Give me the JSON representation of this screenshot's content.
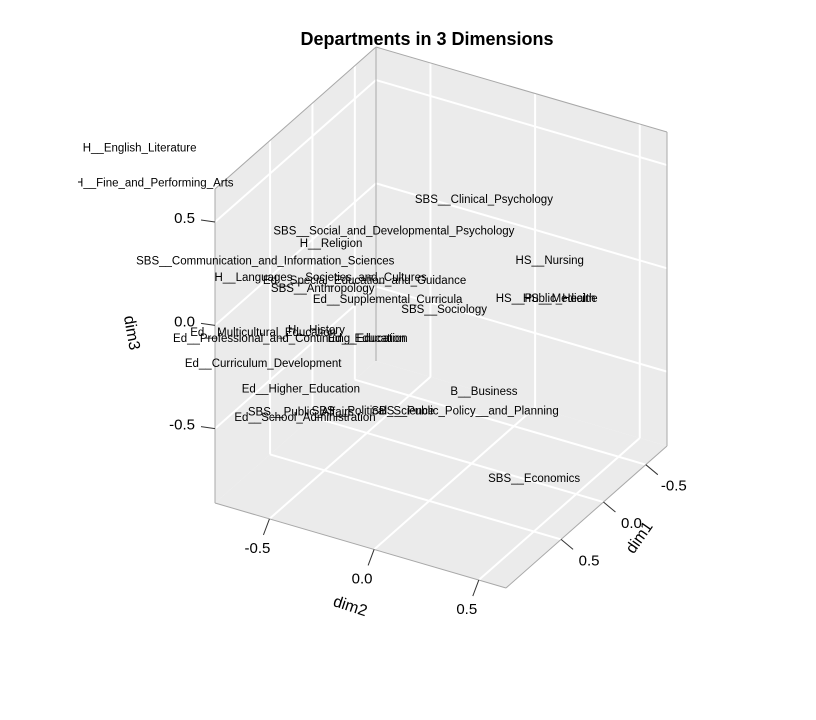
{
  "chart_data": {
    "type": "scatter3d",
    "title": "Departments in 3 Dimensions",
    "xlabel": "dim1",
    "ylabel": "dim2",
    "zlabel": "dim3",
    "xlim": [
      -0.75,
      1.15
    ],
    "ylim": [
      -0.76,
      0.63
    ],
    "zlim": [
      -0.86,
      0.66
    ],
    "xticks": [
      -0.5,
      {
        "value": 0,
        "label": "0.0"
      },
      0.5
    ],
    "yticks": [
      -0.5,
      {
        "value": 0,
        "label": "0.0"
      },
      0.5
    ],
    "zticks": [
      -0.5,
      {
        "value": 0,
        "label": "0.0"
      },
      0.5
    ],
    "grid": true,
    "labels": [
      "H__English_Literature",
      "H__Fine_and_Performing_Arts",
      "SBS__Clinical_Psychology",
      "SBS__Social_and_Developmental_Psychology",
      "H__Religion",
      "SBS__Communication_and_Information_Sciences",
      "HS__Nursing",
      "H__Languages__Societies_and_Cultures",
      "Ed__Special_Education_and_Guidance",
      "SBS__Anthropology",
      "Ed__Supplemental_Curricula",
      "HS__Public_Health",
      "HS__Medicine",
      "SBS__Sociology",
      "H__History",
      "Ed__Multicultural_Education",
      "Ed__Professional_and_Continuing_Education",
      "Ed__Education",
      "Ed__Curriculum_Development",
      "Ed__Higher_Education",
      "B__Business",
      "SBS__Public_Affairs",
      "SBS__Political_Science",
      "SBS__Public_Policy__and_Planning",
      "Ed__School_Administration",
      "SBS__Economics"
    ],
    "x": [
      1.15,
      1.15,
      0.2,
      0.2,
      0.2,
      1.15,
      -0.75,
      0.2,
      0.2,
      0.2,
      0.2,
      -0.75,
      -0.75,
      0.2,
      0.2,
      1.15,
      1.15,
      0.2,
      1.15,
      1.15,
      0.2,
      1.15,
      0.2,
      0.2,
      1.15,
      0.2
    ],
    "y": [
      -1.12,
      -1.05,
      0.14,
      -0.29,
      -0.59,
      -0.52,
      0.07,
      -0.64,
      -0.43,
      -0.63,
      -0.32,
      0.05,
      0.12,
      -0.05,
      -0.66,
      -0.53,
      -0.4,
      -0.42,
      -0.53,
      -0.35,
      0.14,
      -0.35,
      -0.39,
      0.05,
      -0.33,
      0.38
    ],
    "z": [
      0.75,
      0.6,
      0.53,
      0.25,
      0.1,
      0.38,
      -0.13,
      -0.08,
      -0.03,
      -0.13,
      -0.09,
      -0.32,
      -0.3,
      -0.06,
      -0.34,
      0.03,
      0.04,
      -0.31,
      -0.12,
      -0.19,
      -0.4,
      -0.3,
      -0.65,
      -0.52,
      -0.32,
      -0.75
    ]
  }
}
